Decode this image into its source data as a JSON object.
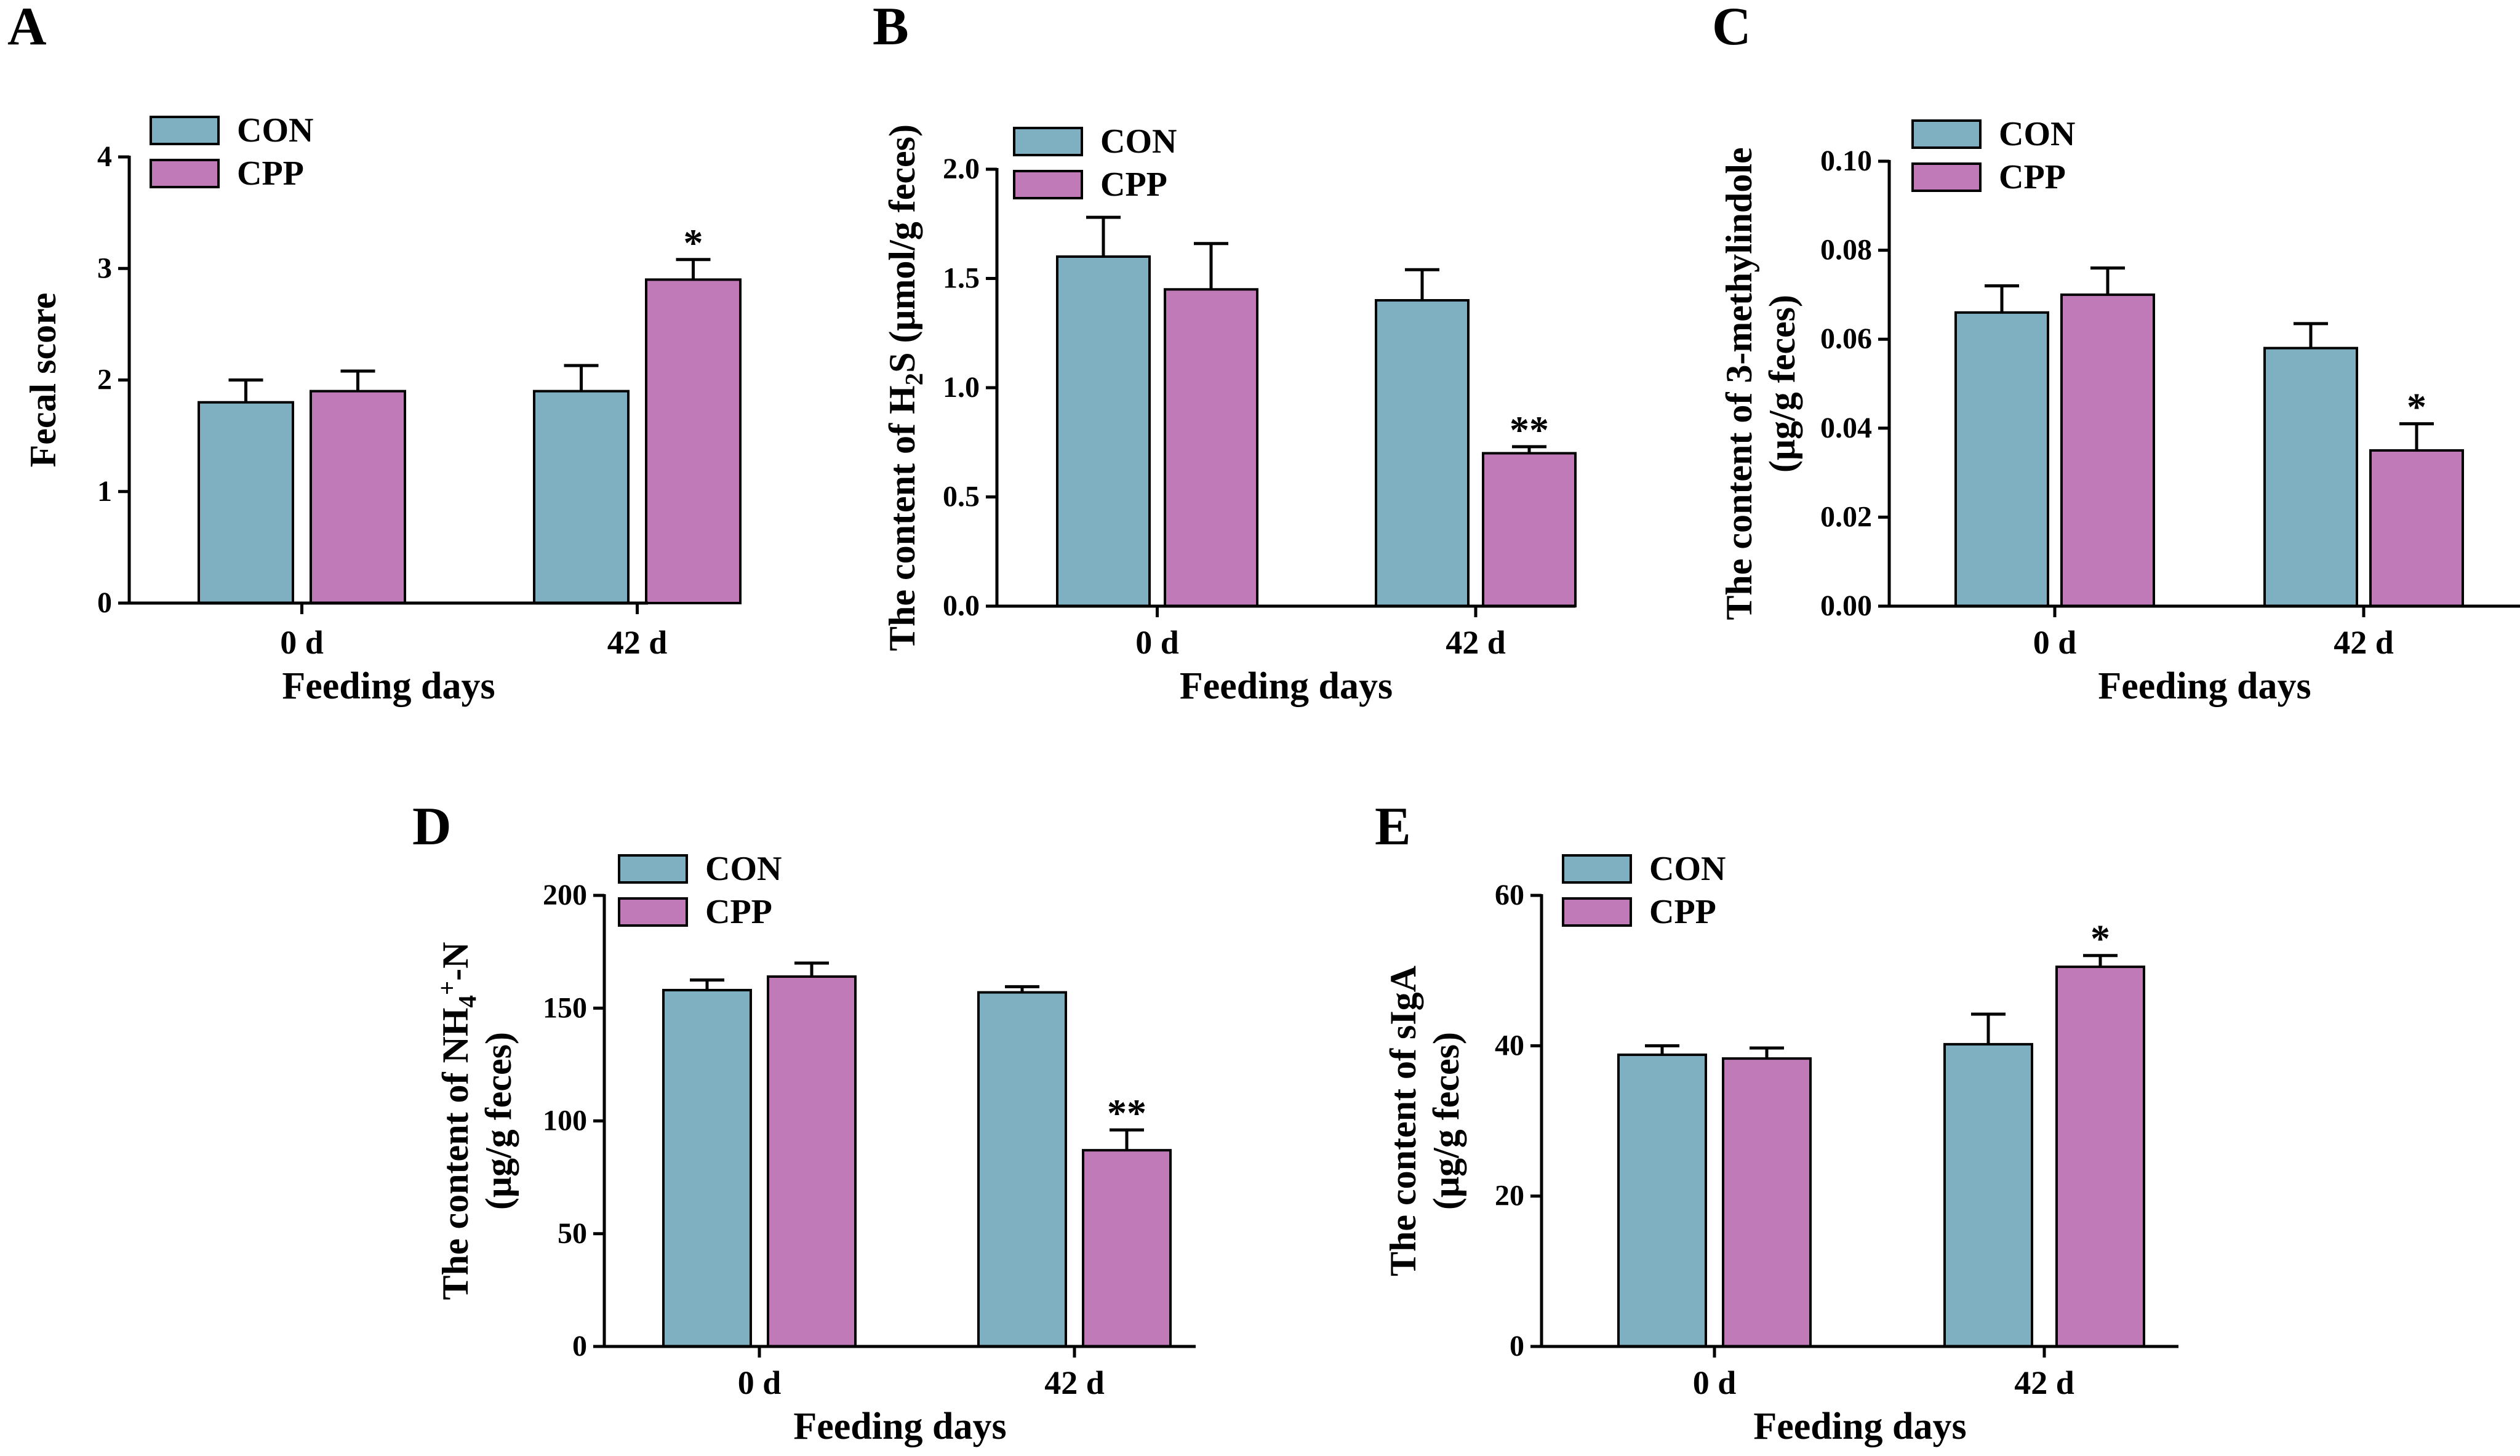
{
  "colors": {
    "con": "#7fb0c1",
    "cpp": "#c07ab8",
    "axis": "#000000"
  },
  "chart_data": [
    {
      "panel": "A",
      "type": "bar",
      "categories": [
        "0 d",
        "42 d"
      ],
      "xlabel": "Feeding days",
      "ylabel": "Fecal score",
      "ylim": [
        0,
        4
      ],
      "yticks": [
        "0",
        "1",
        "2",
        "3",
        "4"
      ],
      "tick_values": [
        0,
        1,
        2,
        3,
        4
      ],
      "legend": [
        "CON",
        "CPP"
      ],
      "series": [
        {
          "name": "CON",
          "values": [
            1.8,
            1.9
          ],
          "errors": [
            0.2,
            0.23
          ],
          "sig": [
            "",
            ""
          ]
        },
        {
          "name": "CPP",
          "values": [
            1.9,
            2.9
          ],
          "errors": [
            0.18,
            0.18
          ],
          "sig": [
            "",
            "*"
          ]
        }
      ]
    },
    {
      "panel": "B",
      "type": "bar",
      "categories": [
        "0 d",
        "42 d"
      ],
      "xlabel": "Feeding days",
      "ylabel": {
        "pre": "The content of H",
        "sub": "2",
        "post": "S (μmol/g feces)"
      },
      "ylim": [
        0,
        2
      ],
      "yticks": [
        "0.0",
        "0.5",
        "1.0",
        "1.5",
        "2.0"
      ],
      "tick_values": [
        0,
        0.5,
        1.0,
        1.5,
        2.0
      ],
      "legend": [
        "CON",
        "CPP"
      ],
      "series": [
        {
          "name": "CON",
          "values": [
            1.6,
            1.4
          ],
          "errors": [
            0.18,
            0.14
          ],
          "sig": [
            "",
            ""
          ]
        },
        {
          "name": "CPP",
          "values": [
            1.45,
            0.7
          ],
          "errors": [
            0.21,
            0.03
          ],
          "sig": [
            "",
            "**"
          ]
        }
      ]
    },
    {
      "panel": "C",
      "type": "bar",
      "categories": [
        "0 d",
        "42 d"
      ],
      "xlabel": "Feeding days",
      "ylabel": [
        "The content of 3-methylindole",
        "(μg/g feces)"
      ],
      "ylim": [
        0,
        0.1
      ],
      "yticks": [
        "0.00",
        "0.02",
        "0.04",
        "0.06",
        "0.08",
        "0.10"
      ],
      "tick_values": [
        0,
        0.02,
        0.04,
        0.06,
        0.08,
        0.1
      ],
      "legend": [
        "CON",
        "CPP"
      ],
      "series": [
        {
          "name": "CON",
          "values": [
            0.066,
            0.058
          ],
          "errors": [
            0.006,
            0.0055
          ],
          "sig": [
            "",
            ""
          ]
        },
        {
          "name": "CPP",
          "values": [
            0.07,
            0.035
          ],
          "errors": [
            0.006,
            0.006
          ],
          "sig": [
            "",
            "*"
          ]
        }
      ]
    },
    {
      "panel": "D",
      "type": "bar",
      "categories": [
        "0 d",
        "42 d"
      ],
      "xlabel": "Feeding days",
      "ylabel": [
        {
          "pre": "The content of NH",
          "sub": "4",
          "sup": "+",
          "post": "-N"
        },
        "(μg/g feces)"
      ],
      "ylim": [
        0,
        200
      ],
      "yticks": [
        "0",
        "50",
        "100",
        "150",
        "200"
      ],
      "tick_values": [
        0,
        50,
        100,
        150,
        200
      ],
      "legend": [
        "CON",
        "CPP"
      ],
      "series": [
        {
          "name": "CON",
          "values": [
            158,
            157
          ],
          "errors": [
            4.5,
            2.5
          ],
          "sig": [
            "",
            ""
          ]
        },
        {
          "name": "CPP",
          "values": [
            164,
            87
          ],
          "errors": [
            6,
            9
          ],
          "sig": [
            "",
            "**"
          ]
        }
      ]
    },
    {
      "panel": "E",
      "type": "bar",
      "categories": [
        "0 d",
        "42 d"
      ],
      "xlabel": "Feeding days",
      "ylabel": [
        "The content of sIgA",
        "(μg/g feces)"
      ],
      "ylim": [
        0,
        60
      ],
      "yticks": [
        "0",
        "20",
        "40",
        "60"
      ],
      "tick_values": [
        0,
        20,
        40,
        60
      ],
      "legend": [
        "CON",
        "CPP"
      ],
      "series": [
        {
          "name": "CON",
          "values": [
            38.8,
            40.2
          ],
          "errors": [
            1.2,
            4
          ],
          "sig": [
            "",
            ""
          ]
        },
        {
          "name": "CPP",
          "values": [
            38.3,
            50.5
          ],
          "errors": [
            1.4,
            1.5
          ],
          "sig": [
            "",
            "*"
          ]
        }
      ]
    }
  ]
}
